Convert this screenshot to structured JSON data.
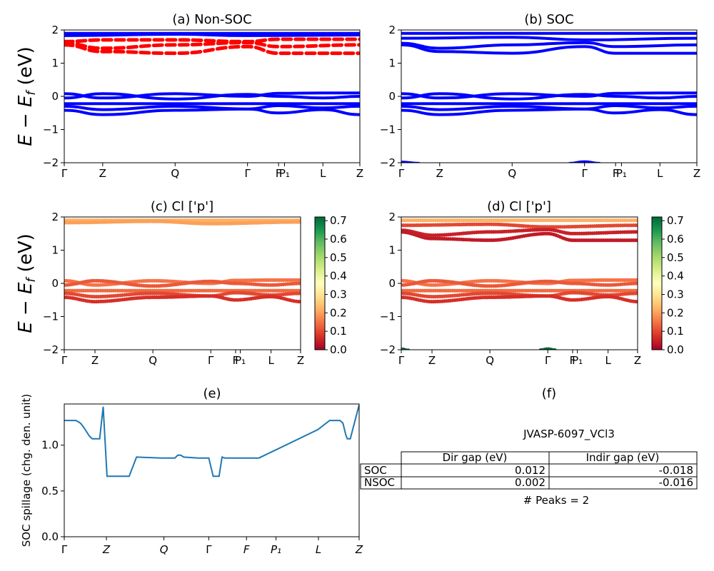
{
  "colors": {
    "soc_band": "#0000ff",
    "nonsoc_band": "#ff0000",
    "spillage_line": "#1f77b4",
    "colormap": [
      "#a50026",
      "#d73027",
      "#f46d43",
      "#fdae61",
      "#fee08b",
      "#ffffbf",
      "#d9ef8b",
      "#a6d96a",
      "#66bd63",
      "#1a9850",
      "#006837"
    ]
  },
  "kpath_labels": [
    "Γ",
    "Z",
    "Q",
    "Γ",
    "F",
    "P₁",
    "L",
    "Z"
  ],
  "panel_a": {
    "title": "(a) Non-SOC",
    "ylabel": "E − E_f (eV)"
  },
  "panel_b": {
    "title": "(b) SOC"
  },
  "panel_c": {
    "title": "(c)  Cl ['p']",
    "ylabel": "E − E_f (eV)"
  },
  "panel_d": {
    "title": "(d) Cl ['p']"
  },
  "panel_e": {
    "title": "(e)",
    "ylabel": "SOC spillage (chg. den. unit)"
  },
  "panel_f": {
    "title": "(f)",
    "material": "JVASP-6097_VCl3",
    "table": {
      "headers": [
        "Dir gap (eV)",
        "Indir gap (eV)"
      ],
      "rows": [
        {
          "label": "SOC",
          "dir": "0.012",
          "indir": "-0.018"
        },
        {
          "label": "NSOC",
          "dir": "0.002",
          "indir": "-0.016"
        }
      ]
    },
    "peaks": "# Peaks = 2"
  },
  "colorbar": {
    "ticks": [
      "0.0",
      "0.1",
      "0.2",
      "0.3",
      "0.4",
      "0.5",
      "0.6",
      "0.7"
    ],
    "range": [
      0,
      0.72
    ]
  },
  "chart_data": [
    {
      "type": "line",
      "panel": "a",
      "title": "(a) Non-SOC",
      "ylabel": "E − E_f (eV)",
      "ylim": [
        -2,
        2
      ],
      "yticks": [
        -2,
        -1,
        0,
        1,
        2
      ],
      "kpath": [
        {
          "label": "Γ",
          "pos": 0
        },
        {
          "label": "Z",
          "pos": 0.13
        },
        {
          "label": "Q",
          "pos": 0.375
        },
        {
          "label": "Γ",
          "pos": 0.62
        },
        {
          "label": "F",
          "pos": 0.725
        },
        {
          "label": "P₁",
          "pos": 0.745
        },
        {
          "label": "L",
          "pos": 0.875
        },
        {
          "label": "Z",
          "pos": 1.0
        }
      ],
      "series": [
        {
          "style": "solid",
          "color": "blue",
          "x": [
            0,
            0.13,
            0.375,
            0.62,
            0.725,
            0.875,
            1.0
          ],
          "y": [
            0.08,
            -0.05,
            0.08,
            0.0,
            0.09,
            0.1,
            0.1
          ]
        },
        {
          "style": "solid",
          "color": "blue",
          "x": [
            0,
            0.13,
            0.375,
            0.62,
            0.725,
            0.875,
            1.0
          ],
          "y": [
            -0.05,
            0.08,
            -0.08,
            0.06,
            0.0,
            -0.05,
            0.0
          ]
        },
        {
          "style": "solid",
          "color": "blue",
          "x": [
            0,
            1.0
          ],
          "y": [
            -0.22,
            -0.22
          ]
        },
        {
          "style": "solid",
          "color": "blue",
          "x": [
            0,
            0.13,
            0.375,
            0.62,
            0.725,
            0.875,
            1.0
          ],
          "y": [
            -0.3,
            -0.4,
            -0.3,
            -0.38,
            -0.28,
            -0.35,
            -0.3
          ]
        },
        {
          "style": "solid",
          "color": "blue",
          "x": [
            0,
            0.13,
            0.375,
            0.62,
            0.725,
            0.875,
            1.0
          ],
          "y": [
            -0.42,
            -0.55,
            -0.42,
            -0.38,
            -0.5,
            -0.4,
            -0.55
          ]
        },
        {
          "style": "solid",
          "color": "blue",
          "x": [
            0,
            1.0
          ],
          "y": [
            1.9,
            1.9
          ]
        },
        {
          "style": "solid",
          "color": "blue",
          "x": [
            0,
            0.375,
            0.62,
            1.0
          ],
          "y": [
            1.83,
            1.87,
            1.83,
            1.85
          ]
        },
        {
          "style": "dashed",
          "color": "red",
          "x": [
            0,
            0.13,
            0.375,
            0.62,
            0.725,
            1.0
          ],
          "y": [
            1.6,
            1.45,
            1.55,
            1.62,
            1.5,
            1.55
          ]
        },
        {
          "style": "dashed",
          "color": "red",
          "x": [
            0,
            0.13,
            0.375,
            0.62,
            0.725,
            1.0
          ],
          "y": [
            1.55,
            1.35,
            1.3,
            1.5,
            1.3,
            1.3
          ]
        },
        {
          "style": "dashed",
          "color": "red",
          "x": [
            0,
            0.13,
            0.375,
            0.62,
            0.725,
            1.0
          ],
          "y": [
            1.65,
            1.7,
            1.7,
            1.65,
            1.72,
            1.72
          ]
        }
      ]
    },
    {
      "type": "line",
      "panel": "b",
      "title": "(b) SOC",
      "ylim": [
        -2,
        2
      ],
      "yticks": [
        -2,
        -1,
        0,
        1,
        2
      ],
      "kpath": [
        {
          "label": "Γ",
          "pos": 0
        },
        {
          "label": "Z",
          "pos": 0.13
        },
        {
          "label": "Q",
          "pos": 0.375
        },
        {
          "label": "Γ",
          "pos": 0.62
        },
        {
          "label": "F",
          "pos": 0.725
        },
        {
          "label": "P₁",
          "pos": 0.745
        },
        {
          "label": "L",
          "pos": 0.875
        },
        {
          "label": "Z",
          "pos": 1.0
        }
      ],
      "series": [
        {
          "style": "solid",
          "color": "blue",
          "x": [
            0,
            0.13,
            0.375,
            0.62,
            0.725,
            0.875,
            1.0
          ],
          "y": [
            0.08,
            -0.05,
            0.08,
            0.0,
            0.09,
            0.1,
            0.1
          ]
        },
        {
          "style": "solid",
          "color": "blue",
          "x": [
            0,
            0.13,
            0.375,
            0.62,
            0.725,
            0.875,
            1.0
          ],
          "y": [
            -0.05,
            0.08,
            -0.08,
            0.06,
            0.0,
            -0.05,
            0.0
          ]
        },
        {
          "style": "solid",
          "color": "blue",
          "x": [
            0,
            1.0
          ],
          "y": [
            -0.22,
            -0.22
          ]
        },
        {
          "style": "solid",
          "color": "blue",
          "x": [
            0,
            0.13,
            0.375,
            0.62,
            0.725,
            0.875,
            1.0
          ],
          "y": [
            -0.3,
            -0.4,
            -0.3,
            -0.38,
            -0.28,
            -0.35,
            -0.3
          ]
        },
        {
          "style": "solid",
          "color": "blue",
          "x": [
            0,
            0.13,
            0.375,
            0.62,
            0.725,
            0.875,
            1.0
          ],
          "y": [
            -0.42,
            -0.55,
            -0.42,
            -0.38,
            -0.5,
            -0.4,
            -0.55
          ]
        },
        {
          "style": "solid",
          "color": "blue",
          "x": [
            0,
            1.0
          ],
          "y": [
            1.9,
            1.9
          ]
        },
        {
          "style": "solid",
          "color": "blue",
          "x": [
            0,
            0.375,
            0.62,
            1.0
          ],
          "y": [
            1.75,
            1.78,
            1.7,
            1.75
          ]
        },
        {
          "style": "solid",
          "color": "blue",
          "x": [
            0,
            0.13,
            0.375,
            0.62,
            0.725,
            1.0
          ],
          "y": [
            1.6,
            1.45,
            1.55,
            1.62,
            1.5,
            1.55
          ]
        },
        {
          "style": "solid",
          "color": "blue",
          "x": [
            0,
            0.13,
            0.375,
            0.62,
            0.725,
            1.0
          ],
          "y": [
            1.55,
            1.35,
            1.3,
            1.5,
            1.3,
            1.3
          ]
        },
        {
          "style": "solid",
          "color": "blue",
          "x": [
            0,
            0.06
          ],
          "y": [
            -1.98,
            -2.02
          ]
        },
        {
          "style": "solid",
          "color": "blue",
          "x": [
            0.57,
            0.62,
            0.67
          ],
          "y": [
            -2.02,
            -1.97,
            -2.02
          ]
        }
      ]
    },
    {
      "type": "scatter",
      "panel": "c",
      "title": "(c)  Cl ['p']",
      "ylabel": "E − E_f (eV)",
      "ylim": [
        -2,
        2
      ],
      "yticks": [
        -2,
        -1,
        0,
        1,
        2
      ],
      "colorbar": {
        "min": 0,
        "max": 0.72,
        "ticks": [
          0,
          0.1,
          0.2,
          0.3,
          0.4,
          0.5,
          0.6,
          0.7
        ]
      },
      "kpath": [
        {
          "label": "Γ",
          "pos": 0
        },
        {
          "label": "Z",
          "pos": 0.13
        },
        {
          "label": "Q",
          "pos": 0.375
        },
        {
          "label": "Γ",
          "pos": 0.62
        },
        {
          "label": "F",
          "pos": 0.725
        },
        {
          "label": "P₁",
          "pos": 0.745
        },
        {
          "label": "L",
          "pos": 0.875
        },
        {
          "label": "Z",
          "pos": 1.0
        }
      ],
      "series": [
        {
          "weight": 0.15,
          "x": [
            0,
            0.13,
            0.375,
            0.62,
            0.725,
            0.875,
            1.0
          ],
          "y": [
            0.08,
            -0.05,
            0.08,
            0.0,
            0.09,
            0.1,
            0.1
          ]
        },
        {
          "weight": 0.12,
          "x": [
            0,
            0.13,
            0.375,
            0.62,
            0.725,
            0.875,
            1.0
          ],
          "y": [
            -0.05,
            0.08,
            -0.08,
            0.06,
            0.0,
            -0.05,
            0.0
          ]
        },
        {
          "weight": 0.14,
          "x": [
            0,
            1.0
          ],
          "y": [
            -0.22,
            -0.22
          ]
        },
        {
          "weight": 0.1,
          "x": [
            0,
            0.13,
            0.375,
            0.62,
            0.725,
            0.875,
            1.0
          ],
          "y": [
            -0.3,
            -0.4,
            -0.3,
            -0.38,
            -0.28,
            -0.35,
            -0.3
          ]
        },
        {
          "weight": 0.07,
          "x": [
            0,
            0.13,
            0.375,
            0.62,
            0.725,
            0.875,
            1.0
          ],
          "y": [
            -0.42,
            -0.55,
            -0.42,
            -0.38,
            -0.5,
            -0.4,
            -0.55
          ]
        },
        {
          "weight": 0.22,
          "x": [
            0,
            1.0
          ],
          "y": [
            1.9,
            1.9
          ]
        },
        {
          "weight": 0.2,
          "x": [
            0,
            0.375,
            0.62,
            1.0
          ],
          "y": [
            1.83,
            1.87,
            1.8,
            1.85
          ]
        }
      ]
    },
    {
      "type": "scatter",
      "panel": "d",
      "title": "(d) Cl ['p']",
      "ylim": [
        -2,
        2
      ],
      "yticks": [
        -2,
        -1,
        0,
        1,
        2
      ],
      "colorbar": {
        "min": 0,
        "max": 0.72,
        "ticks": [
          0,
          0.1,
          0.2,
          0.3,
          0.4,
          0.5,
          0.6,
          0.7
        ]
      },
      "kpath": [
        {
          "label": "Γ",
          "pos": 0
        },
        {
          "label": "Z",
          "pos": 0.13
        },
        {
          "label": "Q",
          "pos": 0.375
        },
        {
          "label": "Γ",
          "pos": 0.62
        },
        {
          "label": "F",
          "pos": 0.725
        },
        {
          "label": "P₁",
          "pos": 0.745
        },
        {
          "label": "L",
          "pos": 0.875
        },
        {
          "label": "Z",
          "pos": 1.0
        }
      ],
      "series": [
        {
          "weight": 0.15,
          "x": [
            0,
            0.13,
            0.375,
            0.62,
            0.725,
            0.875,
            1.0
          ],
          "y": [
            0.08,
            -0.05,
            0.08,
            0.0,
            0.09,
            0.1,
            0.1
          ]
        },
        {
          "weight": 0.12,
          "x": [
            0,
            0.13,
            0.375,
            0.62,
            0.725,
            0.875,
            1.0
          ],
          "y": [
            -0.05,
            0.08,
            -0.08,
            0.06,
            0.0,
            -0.05,
            0.0
          ]
        },
        {
          "weight": 0.14,
          "x": [
            0,
            1.0
          ],
          "y": [
            -0.22,
            -0.22
          ]
        },
        {
          "weight": 0.1,
          "x": [
            0,
            0.13,
            0.375,
            0.62,
            0.725,
            0.875,
            1.0
          ],
          "y": [
            -0.3,
            -0.4,
            -0.3,
            -0.38,
            -0.28,
            -0.35,
            -0.3
          ]
        },
        {
          "weight": 0.07,
          "x": [
            0,
            0.13,
            0.375,
            0.62,
            0.725,
            0.875,
            1.0
          ],
          "y": [
            -0.42,
            -0.55,
            -0.42,
            -0.38,
            -0.5,
            -0.4,
            -0.55
          ]
        },
        {
          "weight": 0.22,
          "x": [
            0,
            1.0
          ],
          "y": [
            1.9,
            1.9
          ]
        },
        {
          "weight": 0.1,
          "x": [
            0,
            0.375,
            0.62,
            1.0
          ],
          "y": [
            1.75,
            1.78,
            1.7,
            1.75
          ]
        },
        {
          "weight": 0.05,
          "x": [
            0,
            0.13,
            0.375,
            0.62,
            0.725,
            1.0
          ],
          "y": [
            1.6,
            1.45,
            1.55,
            1.62,
            1.5,
            1.55
          ]
        },
        {
          "weight": 0.04,
          "x": [
            0,
            0.13,
            0.375,
            0.62,
            0.725,
            1.0
          ],
          "y": [
            1.55,
            1.35,
            1.3,
            1.5,
            1.3,
            1.3
          ]
        },
        {
          "weight": 0.72,
          "x": [
            0,
            0.03
          ],
          "y": [
            -1.98,
            -2.02
          ]
        },
        {
          "weight": 0.72,
          "x": [
            0.59,
            0.62,
            0.65
          ],
          "y": [
            -2.01,
            -1.98,
            -2.01
          ]
        }
      ]
    },
    {
      "type": "line",
      "panel": "e",
      "title": "(e)",
      "ylabel": "SOC spillage (chg. den. unit)",
      "ylim": [
        0,
        1.45
      ],
      "yticks": [
        0.0,
        0.5,
        1.0
      ],
      "xticks": [
        {
          "label": "Γ",
          "pos": 0
        },
        {
          "label": "Z",
          "pos": 0.143
        },
        {
          "label": "Q",
          "pos": 0.338
        },
        {
          "label": "Γ",
          "pos": 0.49
        },
        {
          "label": "F",
          "pos": 0.618
        },
        {
          "label": "P₁",
          "pos": 0.718
        },
        {
          "label": "L",
          "pos": 0.862
        },
        {
          "label": "Z",
          "pos": 1.0
        }
      ],
      "x": [
        0,
        0.04,
        0.055,
        0.065,
        0.075,
        0.085,
        0.095,
        0.105,
        0.11,
        0.115,
        0.12,
        0.132,
        0.145,
        0.17,
        0.22,
        0.245,
        0.33,
        0.355,
        0.375,
        0.385,
        0.395,
        0.405,
        0.455,
        0.465,
        0.475,
        0.49,
        0.505,
        0.525,
        0.535,
        0.545,
        0.555,
        0.56,
        0.57,
        0.58,
        0.6,
        0.605,
        0.66,
        0.86,
        0.9,
        0.92,
        0.925,
        0.935,
        0.945,
        0.955,
        0.96,
        0.97,
        1.0
      ],
      "y": [
        1.27,
        1.27,
        1.24,
        1.2,
        1.15,
        1.1,
        1.07,
        1.07,
        1.07,
        1.07,
        1.07,
        1.42,
        0.66,
        0.66,
        0.66,
        0.87,
        0.86,
        0.86,
        0.86,
        0.89,
        0.89,
        0.87,
        0.86,
        0.86,
        0.86,
        0.86,
        0.66,
        0.66,
        0.87,
        0.86,
        0.86,
        0.86,
        0.86,
        0.86,
        0.86,
        0.86,
        0.86,
        1.17,
        1.27,
        1.27,
        1.27,
        1.27,
        1.24,
        1.11,
        1.07,
        1.07,
        1.44
      ]
    }
  ]
}
